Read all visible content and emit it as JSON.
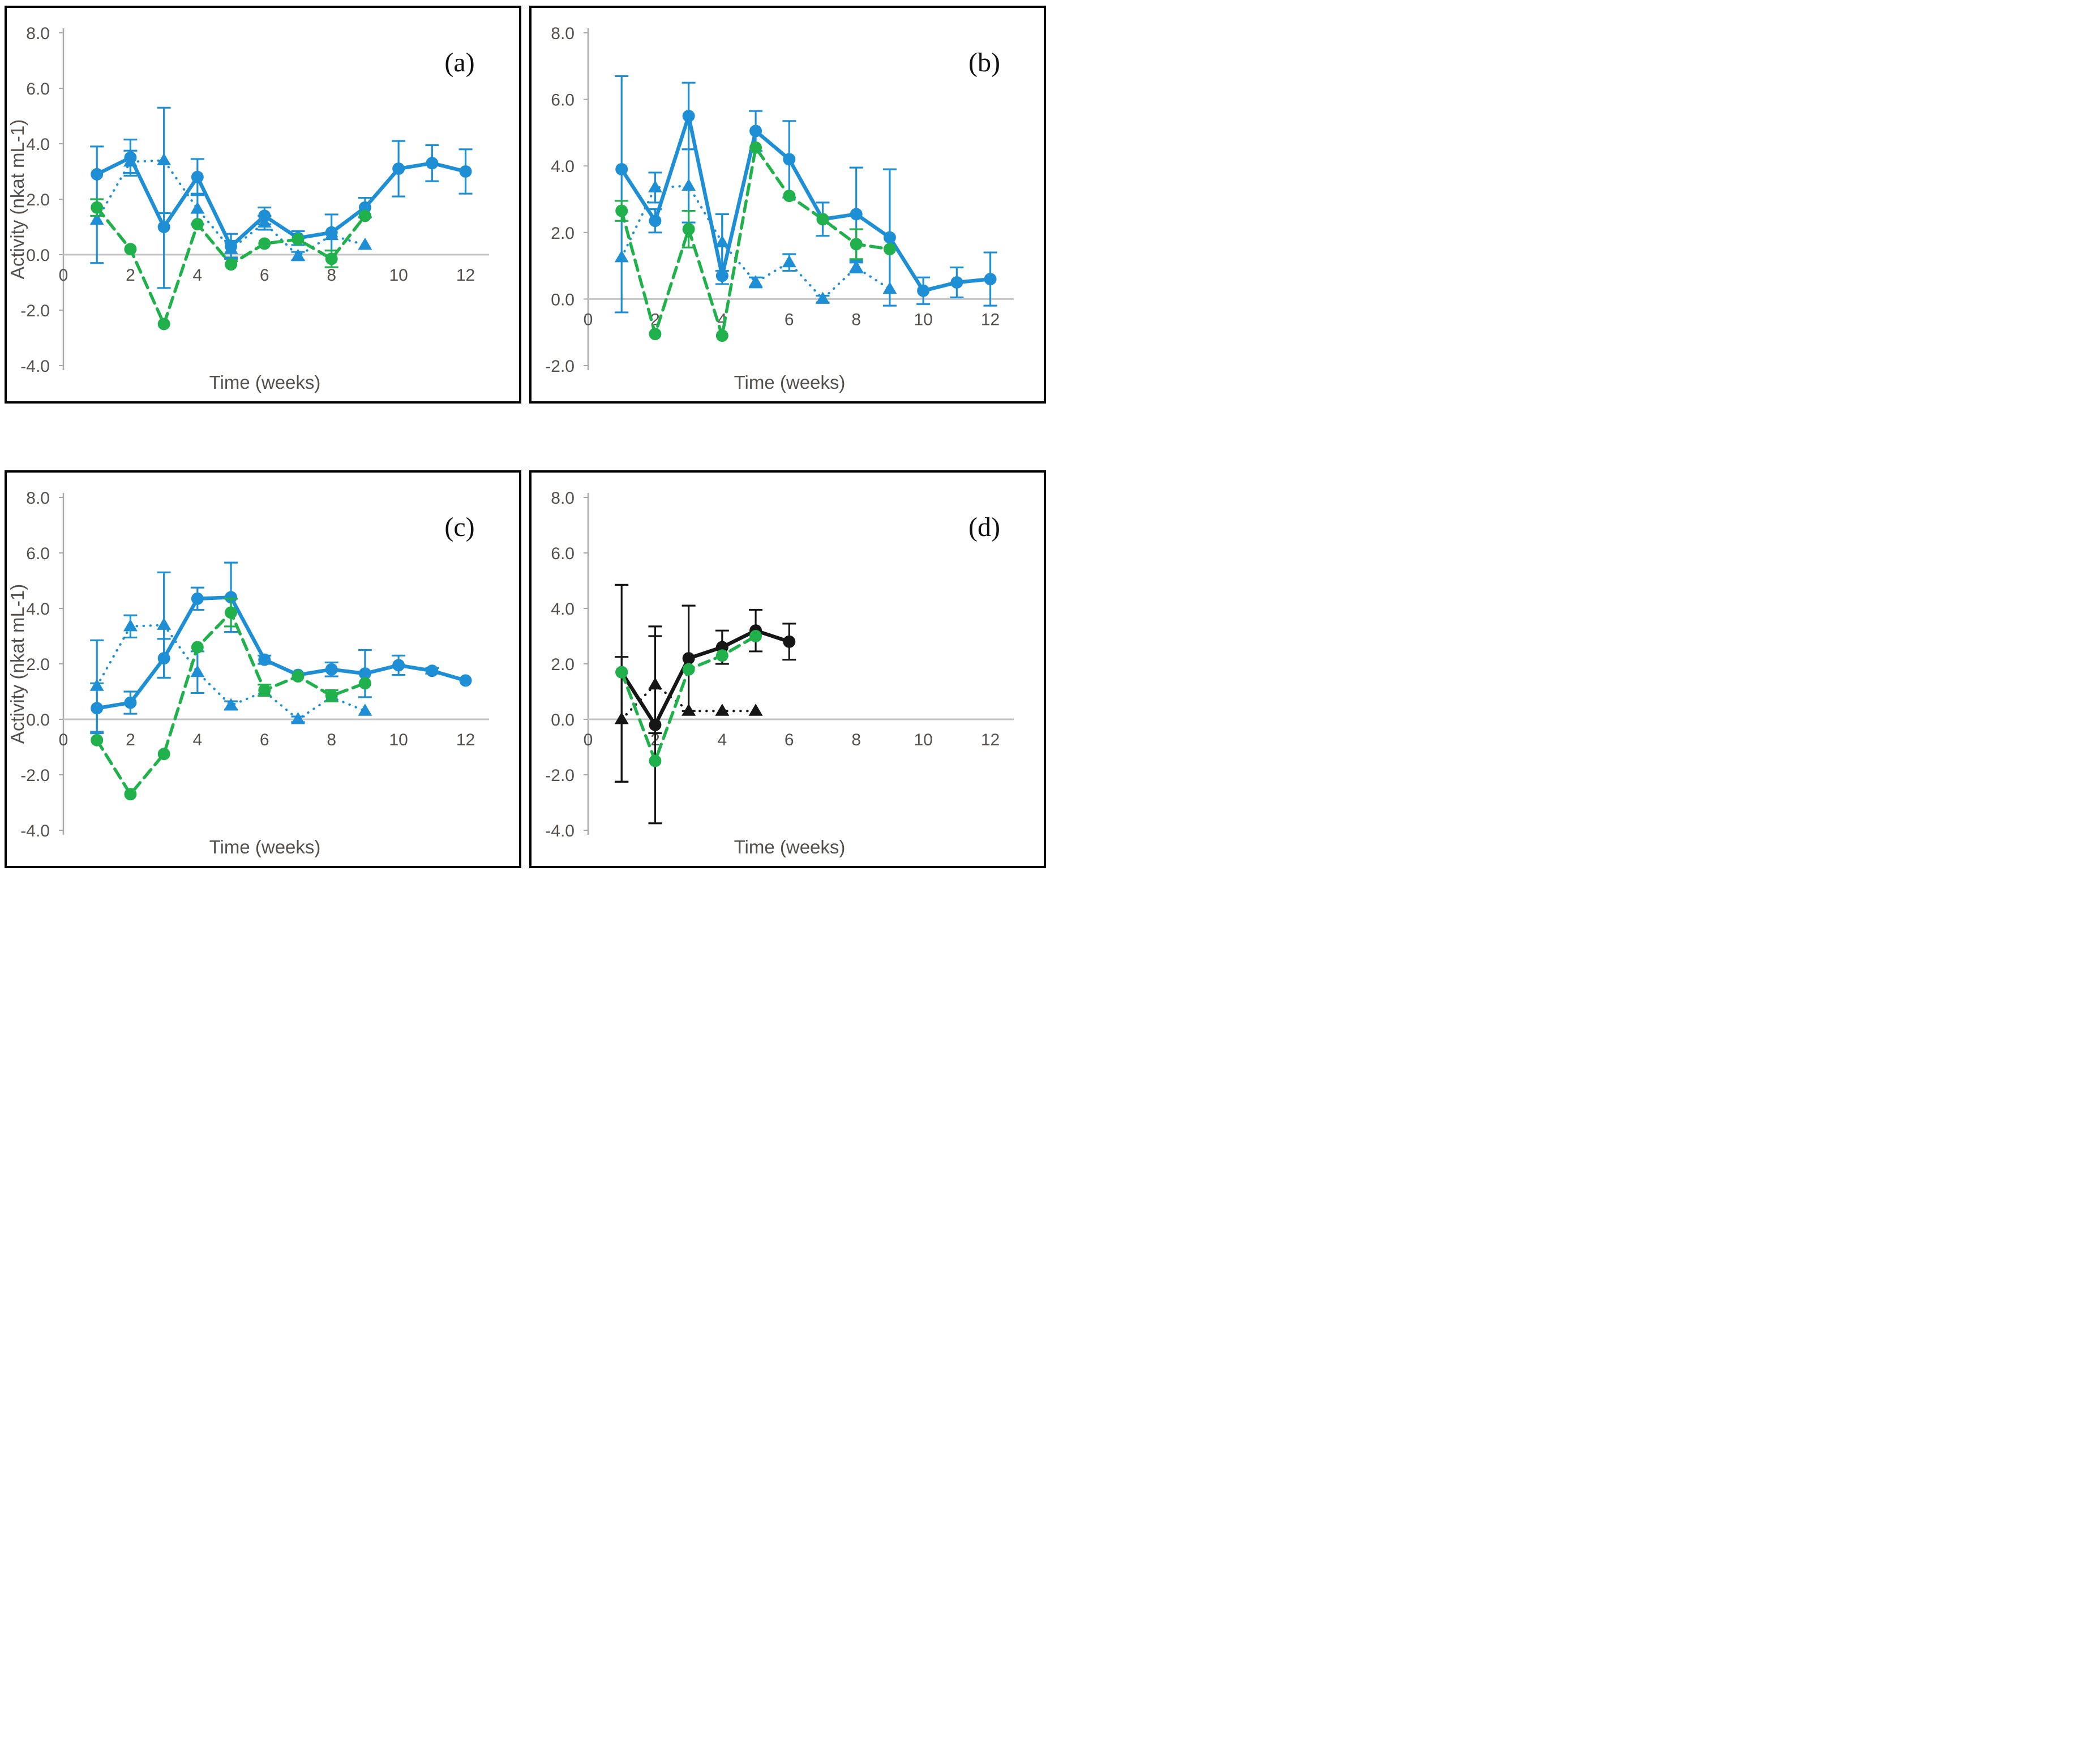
{
  "figure": {
    "description": "Four-panel line chart figure of enzyme activity over time",
    "panel_labels": [
      "(a)",
      "(b)",
      "(c)",
      "(d)"
    ],
    "colors": {
      "blue": "#1e8fd5",
      "green": "#21b14c",
      "black": "#161616",
      "axis_gray": "#a9a9a9",
      "gridline_gray": "#c4c4c4",
      "tick_text": "#55504b"
    }
  },
  "chart_data": [
    {
      "id": "panel-a",
      "type": "line",
      "label": "(a)",
      "x_axis_title": "Time (weeks)",
      "y_axis_title": "Activity (nkat mL-1)",
      "ylim": [
        -4,
        8
      ],
      "yticks": [
        8,
        6,
        4,
        2,
        0,
        -2,
        -4
      ],
      "xticks": [
        0,
        2,
        4,
        6,
        8,
        10,
        12
      ],
      "legend": "none",
      "grid": "zero-line-only",
      "series": [
        {
          "name": "blue-triangles-dotted",
          "color": "#1e8fd5",
          "line": "dotted",
          "marker": "triangle",
          "x": [
            1,
            2,
            3,
            4,
            5,
            6,
            7,
            8,
            9
          ],
          "y": [
            1.25,
            3.35,
            3.4,
            1.65,
            0.2,
            1.15,
            -0.05,
            0.7,
            0.35
          ],
          "err": [
            0,
            0.4,
            1.9,
            0.55,
            0.3,
            0.25,
            0.15,
            0,
            0
          ]
        },
        {
          "name": "blue-circles-solid",
          "color": "#1e8fd5",
          "line": "solid",
          "marker": "circle",
          "x": [
            1,
            2,
            3,
            4,
            5,
            6,
            7,
            8,
            9,
            10,
            11,
            12
          ],
          "y": [
            2.9,
            3.5,
            1.0,
            2.8,
            0.3,
            1.4,
            0.6,
            0.8,
            1.7,
            3.1,
            3.3,
            3.0
          ],
          "err": [
            [
              3.2,
              1.0
            ],
            0.65,
            [
              2.2,
              0.5
            ],
            0.65,
            0.45,
            0.3,
            0.25,
            0.65,
            0.35,
            1.0,
            0.65,
            0.8
          ]
        },
        {
          "name": "green-circles-dashed",
          "color": "#21b14c",
          "line": "dashed",
          "marker": "circle",
          "x": [
            1,
            2,
            3,
            4,
            5,
            6,
            7,
            8,
            9
          ],
          "y": [
            1.7,
            0.2,
            -2.5,
            1.1,
            -0.35,
            0.4,
            0.55,
            -0.15,
            1.4
          ],
          "err": [
            0.3,
            0,
            0,
            0,
            0,
            0,
            0,
            0.3,
            0
          ]
        }
      ]
    },
    {
      "id": "panel-b",
      "type": "line",
      "label": "(b)",
      "x_axis_title": "Time (weeks)",
      "y_axis_title": "",
      "ylim": [
        -2,
        8
      ],
      "yticks": [
        8,
        6,
        4,
        2,
        0,
        -2
      ],
      "xticks": [
        0,
        2,
        4,
        6,
        8,
        10,
        12
      ],
      "legend": "none",
      "grid": "zero-line-only",
      "series": [
        {
          "name": "blue-triangles-dotted",
          "color": "#1e8fd5",
          "line": "dotted",
          "marker": "triangle",
          "x": [
            1,
            2,
            3,
            4,
            5,
            6,
            7,
            8,
            9
          ],
          "y": [
            1.25,
            3.35,
            3.4,
            1.7,
            0.5,
            1.1,
            0.0,
            0.95,
            0.3
          ],
          "err": [
            0,
            0.45,
            1.1,
            0.85,
            0.15,
            0.25,
            0.1,
            0.15,
            0
          ]
        },
        {
          "name": "blue-circles-solid",
          "color": "#1e8fd5",
          "line": "solid",
          "marker": "circle",
          "x": [
            1,
            2,
            3,
            4,
            5,
            6,
            7,
            8,
            9,
            10,
            11,
            12
          ],
          "y": [
            3.9,
            2.35,
            5.5,
            0.7,
            5.05,
            4.2,
            2.4,
            2.55,
            1.85,
            0.25,
            0.5,
            0.6
          ],
          "err": [
            [
              4.3,
              2.8
            ],
            0.35,
            1.0,
            [
              0.25,
              1.85
            ],
            0.6,
            1.15,
            0.5,
            1.4,
            2.05,
            0.4,
            0.45,
            0.8
          ]
        },
        {
          "name": "green-circles-dashed",
          "color": "#21b14c",
          "line": "dashed",
          "marker": "circle",
          "x": [
            1,
            2,
            3,
            4,
            5,
            6,
            7,
            8,
            9
          ],
          "y": [
            2.65,
            -1.05,
            2.1,
            -1.1,
            4.55,
            3.1,
            2.4,
            1.65,
            1.5
          ],
          "err": [
            0.3,
            0,
            0.55,
            0,
            0,
            0,
            0,
            0.45,
            0
          ]
        }
      ]
    },
    {
      "id": "panel-c",
      "type": "line",
      "label": "(c)",
      "x_axis_title": "Time (weeks)",
      "y_axis_title": "Activity (nkat mL-1)",
      "ylim": [
        -4,
        8
      ],
      "yticks": [
        8,
        6,
        4,
        2,
        0,
        -2,
        -4
      ],
      "xticks": [
        0,
        2,
        4,
        6,
        8,
        10,
        12
      ],
      "legend": "none",
      "grid": "zero-line-only",
      "series": [
        {
          "name": "blue-triangles-dotted",
          "color": "#1e8fd5",
          "line": "dotted",
          "marker": "triangle",
          "x": [
            1,
            2,
            3,
            4,
            5,
            6,
            7,
            8,
            9
          ],
          "y": [
            1.2,
            3.35,
            3.4,
            1.7,
            0.5,
            1.0,
            0.0,
            0.8,
            0.3
          ],
          "err": [
            1.65,
            0.4,
            1.9,
            0.75,
            0.15,
            0,
            0.1,
            0,
            0
          ]
        },
        {
          "name": "blue-circles-solid",
          "color": "#1e8fd5",
          "line": "solid",
          "marker": "circle",
          "x": [
            1,
            2,
            3,
            4,
            5,
            6,
            7,
            8,
            9,
            10,
            11,
            12
          ],
          "y": [
            0.4,
            0.6,
            2.2,
            4.35,
            4.4,
            2.15,
            1.6,
            1.8,
            1.65,
            1.95,
            1.75,
            1.4
          ],
          "err": [
            0.9,
            0.4,
            0.7,
            0.4,
            1.25,
            0.15,
            0,
            0.25,
            0.85,
            0.35,
            0.1,
            0
          ]
        },
        {
          "name": "green-circles-dashed",
          "color": "#21b14c",
          "line": "dashed",
          "marker": "circle",
          "x": [
            1,
            2,
            3,
            4,
            5,
            6,
            7,
            8,
            9
          ],
          "y": [
            -0.75,
            -2.7,
            -1.25,
            2.6,
            3.85,
            1.05,
            1.55,
            0.85,
            1.3
          ],
          "err": [
            0,
            0,
            0,
            0,
            0.5,
            0.2,
            0,
            0.2,
            0
          ]
        }
      ]
    },
    {
      "id": "panel-d",
      "type": "line",
      "label": "(d)",
      "x_axis_title": "Time (weeks)",
      "y_axis_title": "",
      "ylim": [
        -4,
        8
      ],
      "yticks": [
        8,
        6,
        4,
        2,
        0,
        -2,
        -4
      ],
      "xticks": [
        0,
        2,
        4,
        6,
        8,
        10,
        12
      ],
      "legend": "none",
      "grid": "zero-line-only",
      "series": [
        {
          "name": "black-triangles-dotted",
          "color": "#161616",
          "line": "dotted",
          "marker": "triangle",
          "x": [
            1,
            2,
            3,
            4,
            5
          ],
          "y": [
            0.0,
            1.25,
            0.3,
            0.3,
            0.3
          ],
          "err": [
            2.25,
            1.75,
            0,
            0,
            0
          ]
        },
        {
          "name": "black-circles-solid",
          "color": "#161616",
          "line": "solid",
          "marker": "circle",
          "x": [
            1,
            2,
            3,
            4,
            5,
            6
          ],
          "y": [
            1.7,
            -0.2,
            2.2,
            2.6,
            3.2,
            2.8
          ],
          "err": [
            [
              3.95,
              3.15
            ],
            3.55,
            1.9,
            0.6,
            0.75,
            0.65
          ]
        },
        {
          "name": "green-circles-dashed",
          "color": "#21b14c",
          "line": "dashed",
          "marker": "circle",
          "x": [
            1,
            2,
            3,
            4,
            5
          ],
          "y": [
            1.7,
            -1.5,
            1.8,
            2.3,
            3.0
          ],
          "err": [
            0,
            0,
            0,
            0,
            0
          ]
        }
      ]
    }
  ]
}
